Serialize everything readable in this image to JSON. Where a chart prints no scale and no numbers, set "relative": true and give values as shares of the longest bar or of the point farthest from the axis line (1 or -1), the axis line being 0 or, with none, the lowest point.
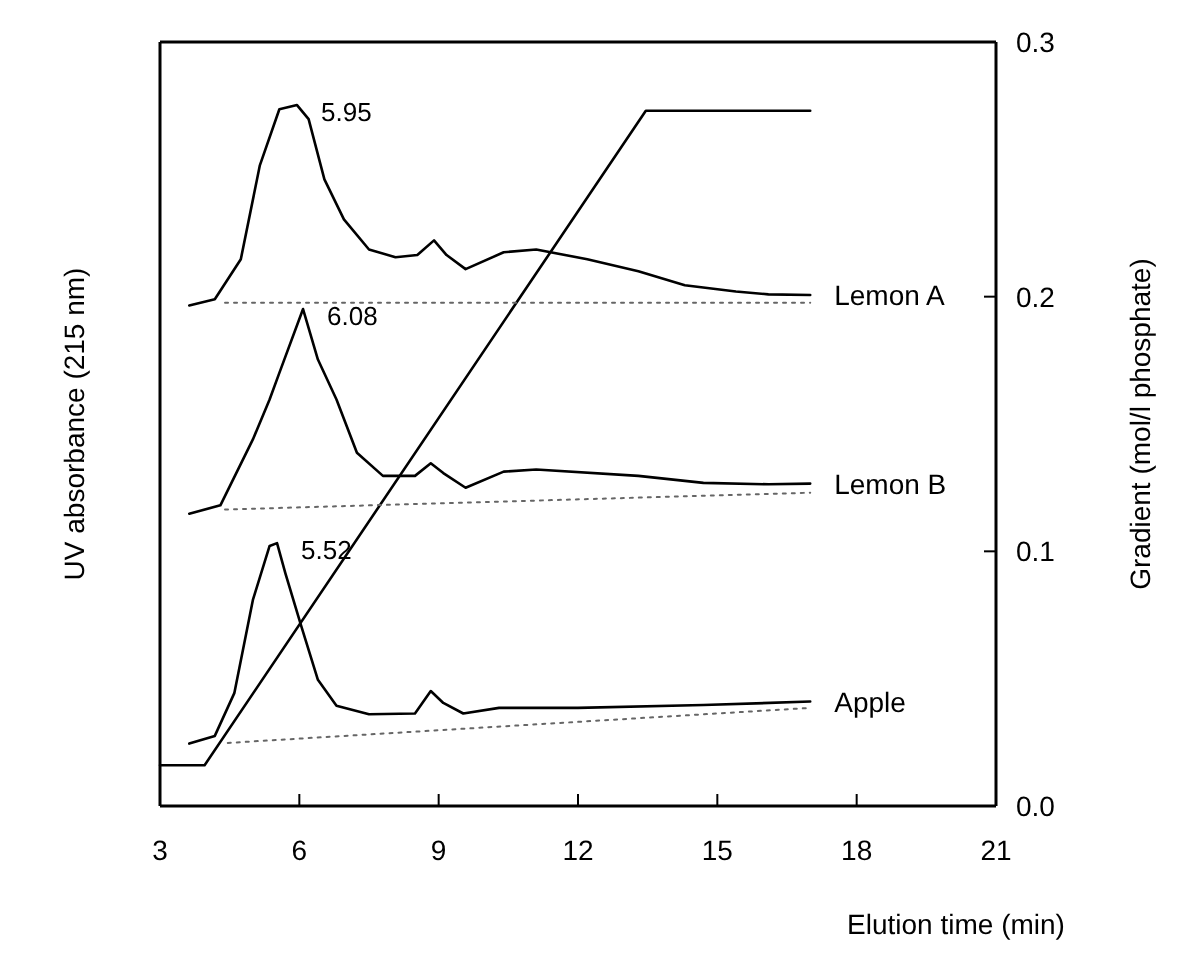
{
  "chart_data": {
    "type": "line",
    "relative": true,
    "xlabel": "Elution time (min)",
    "ylabel": "UV absorbance (215 nm)",
    "y2label": "Gradient (mol/l phosphate)",
    "xlim": [
      3,
      21
    ],
    "xticks": [
      3,
      6,
      9,
      12,
      15,
      18,
      21
    ],
    "y2lim": [
      0,
      0.3
    ],
    "y2ticks": [
      {
        "value": 0,
        "label": "0.0"
      },
      {
        "value": 0.1,
        "label": "0.1"
      },
      {
        "value": 0.2,
        "label": "0.2"
      },
      {
        "value": 0.3,
        "label": "0.3"
      }
    ],
    "grid": false,
    "legend": "right",
    "marker": "none",
    "line_style": "solid",
    "series": [
      {
        "name": "Lemon A",
        "color": "#000000",
        "x": [
          3.63,
          4.18,
          4.74,
          5.15,
          5.57,
          5.95,
          6.2,
          6.54,
          6.96,
          7.5,
          8.07,
          8.54,
          8.9,
          9.17,
          9.58,
          10.4,
          11.1,
          12.2,
          13.3,
          14.3,
          15.4,
          16.1,
          17.0
        ],
        "values": [
          0.714,
          0.723,
          0.78,
          0.914,
          0.994,
          1.0,
          0.98,
          0.894,
          0.837,
          0.794,
          0.783,
          0.786,
          0.807,
          0.786,
          0.766,
          0.79,
          0.794,
          0.78,
          0.763,
          0.743,
          0.734,
          0.73,
          0.729
        ]
      },
      {
        "name": "Lemon B",
        "color": "#000000",
        "x": [
          3.63,
          4.3,
          5.0,
          5.36,
          5.57,
          6.08,
          6.4,
          6.8,
          7.24,
          7.8,
          8.49,
          8.83,
          9.1,
          9.58,
          10.4,
          11.1,
          13.3,
          14.7,
          16.1,
          17.0
        ],
        "values": [
          0.417,
          0.429,
          0.523,
          0.58,
          0.618,
          0.709,
          0.637,
          0.58,
          0.504,
          0.471,
          0.471,
          0.489,
          0.475,
          0.454,
          0.477,
          0.48,
          0.471,
          0.461,
          0.459,
          0.46
        ]
      },
      {
        "name": "Apple",
        "color": "#000000",
        "x": [
          3.63,
          4.18,
          4.6,
          5.0,
          5.36,
          5.52,
          5.7,
          6.04,
          6.4,
          6.8,
          7.5,
          8.49,
          8.83,
          9.1,
          9.53,
          10.3,
          12.0,
          14.7,
          17.0
        ],
        "values": [
          0.089,
          0.1,
          0.161,
          0.294,
          0.371,
          0.375,
          0.332,
          0.257,
          0.18,
          0.143,
          0.131,
          0.132,
          0.164,
          0.147,
          0.132,
          0.14,
          0.14,
          0.144,
          0.149
        ]
      },
      {
        "color": "#000000",
        "axis": "y2",
        "x": [
          3,
          3.96,
          13.46,
          17
        ],
        "values": [
          0.016,
          0.016,
          0.273,
          0.273
        ]
      },
      {
        "color": "#666666",
        "line_style": "dotted",
        "x": [
          4.4,
          17
        ],
        "values": [
          0.718,
          0.718
        ]
      },
      {
        "color": "#666666",
        "line_style": "dotted",
        "x": [
          4.4,
          17
        ],
        "values": [
          0.423,
          0.447
        ]
      },
      {
        "color": "#666666",
        "line_style": "dotted",
        "x": [
          4.46,
          17
        ],
        "values": [
          0.09,
          0.14
        ]
      }
    ],
    "annotations": [
      {
        "text": "5.95",
        "x": 5.95,
        "y": 1.0
      },
      {
        "text": "6.08",
        "x": 6.08,
        "y": 0.709
      },
      {
        "text": "5.52",
        "x": 5.52,
        "y": 0.375
      }
    ]
  }
}
